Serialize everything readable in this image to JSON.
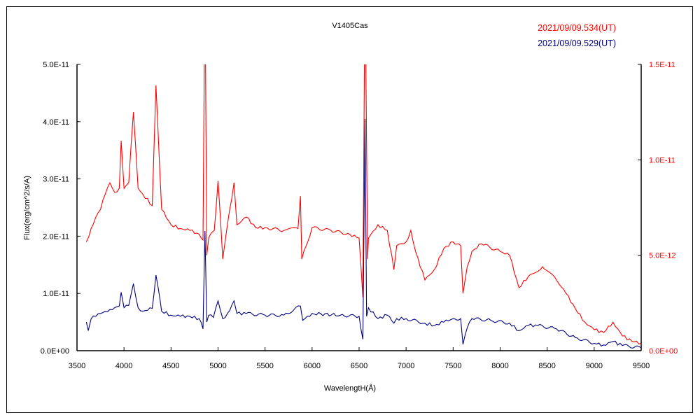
{
  "chart_data": {
    "type": "line",
    "title": "V1405Cas",
    "xlabel": "WavelengtH(Å)",
    "ylabel": "Flux(erg/cm^2/s/A)",
    "xlim": [
      3500,
      9500
    ],
    "xticks": [
      "3500",
      "4000",
      "4500",
      "5000",
      "5500",
      "6000",
      "6500",
      "7000",
      "7500",
      "8000",
      "8500",
      "9000",
      "9500"
    ],
    "ylim_left": [
      0,
      5e-11
    ],
    "yticks_left": [
      "0.0E+00",
      "1.0E-11",
      "2.0E-11",
      "3.0E-11",
      "4.0E-11",
      "5.0E-11"
    ],
    "ylim_right": [
      0,
      1.5e-11
    ],
    "yticks_right": [
      "0.0E+00",
      "5.0E-12",
      "1.0E-11",
      "1.5E-11"
    ],
    "grid": false,
    "legend_placement": "top-right",
    "series": [
      {
        "name": "2021/09/09.534(UT)",
        "color": "#ff0000",
        "axis": "right",
        "x": [
          3600,
          3650,
          3700,
          3750,
          3800,
          3850,
          3900,
          3950,
          3970,
          4000,
          4050,
          4100,
          4150,
          4200,
          4300,
          4340,
          4400,
          4500,
          4600,
          4700,
          4800,
          4840,
          4861,
          4880,
          4900,
          4960,
          5000,
          5050,
          5100,
          5170,
          5200,
          5300,
          5400,
          5500,
          5700,
          5850,
          5876,
          5890,
          6000,
          6200,
          6400,
          6500,
          6540,
          6563,
          6590,
          6600,
          6700,
          6800,
          6870,
          6900,
          7000,
          7050,
          7100,
          7200,
          7300,
          7400,
          7500,
          7580,
          7605,
          7650,
          7700,
          7800,
          8000,
          8100,
          8200,
          8300,
          8450,
          8600,
          8700,
          8800,
          8900,
          9000,
          9100,
          9200,
          9300,
          9400,
          9500
        ],
        "y": [
          5.7e-12,
          6.4e-12,
          7e-12,
          7.4e-12,
          8.2e-12,
          8.8e-12,
          8.3e-12,
          8.5e-12,
          1.1e-11,
          8.5e-12,
          8.8e-12,
          1.25e-11,
          8.5e-12,
          8.2e-12,
          7.6e-12,
          1.39e-11,
          7.4e-12,
          6.6e-12,
          6.4e-12,
          6.3e-12,
          6.1e-12,
          5.8e-12,
          2e-11,
          5e-12,
          5.9e-12,
          6.3e-12,
          8.9e-12,
          4.8e-12,
          6.6e-12,
          8.8e-12,
          6.6e-12,
          7e-12,
          6.45e-12,
          6.45e-12,
          6.3e-12,
          6.4e-12,
          8.1e-12,
          4.8e-12,
          6.45e-12,
          6.3e-12,
          6.1e-12,
          5.9e-12,
          2.8e-12,
          2e-11,
          4.8e-12,
          5.9e-12,
          6.6e-12,
          6.3e-12,
          4.25e-12,
          5.5e-12,
          5.7e-12,
          6.3e-12,
          5.2e-12,
          3.7e-12,
          4.25e-12,
          5.35e-12,
          5.7e-12,
          5.5e-12,
          3e-12,
          4.4e-12,
          5.2e-12,
          5.6e-12,
          5.2e-12,
          5e-12,
          3.3e-12,
          3.9e-12,
          4.4e-12,
          3.7e-12,
          3e-12,
          2.2e-12,
          1.5e-12,
          1.1e-12,
          9.5e-13,
          1.5e-12,
          7.7e-13,
          5e-13,
          4e-13
        ]
      },
      {
        "name": "2021/09/09.529(UT)",
        "color": "#000080",
        "axis": "left",
        "x": [
          3600,
          3620,
          3650,
          3700,
          3750,
          3800,
          3850,
          3900,
          3950,
          3970,
          4000,
          4050,
          4100,
          4150,
          4200,
          4300,
          4340,
          4400,
          4500,
          4600,
          4700,
          4800,
          4840,
          4861,
          4880,
          4900,
          4950,
          5000,
          5050,
          5100,
          5170,
          5200,
          5300,
          5500,
          5700,
          5876,
          5900,
          6000,
          6300,
          6500,
          6540,
          6563,
          6580,
          6600,
          6700,
          6800,
          6870,
          6900,
          7000,
          7200,
          7300,
          7400,
          7500,
          7580,
          7605,
          7650,
          7700,
          7900,
          8100,
          8200,
          8300,
          8400,
          8600,
          8800,
          9000,
          9100,
          9200,
          9300,
          9500
        ],
        "y": [
          5e-12,
          3.5e-12,
          5.6e-12,
          6e-12,
          6.5e-12,
          6.9e-12,
          7.2e-12,
          7.5e-12,
          7.8e-12,
          1.02e-11,
          7.5e-12,
          7.9e-12,
          1.17e-11,
          7.5e-12,
          6.9e-12,
          7.4e-12,
          1.32e-11,
          6.9e-12,
          6.2e-12,
          6e-12,
          6e-12,
          5.6e-12,
          3.8e-12,
          2.09e-11,
          5e-12,
          6.2e-12,
          5.8e-12,
          8.7e-12,
          5.6e-12,
          6.5e-12,
          8.7e-12,
          6.5e-12,
          6.5e-12,
          6.2e-12,
          6.2e-12,
          7.8e-12,
          5.3e-12,
          6.5e-12,
          6.2e-12,
          6e-12,
          2e-12,
          4.05e-11,
          6e-12,
          7.5e-12,
          5.6e-12,
          6.2e-12,
          4.8e-12,
          5.6e-12,
          5.6e-12,
          4.8e-12,
          4.4e-12,
          5e-12,
          5.6e-12,
          5.6e-12,
          1.1e-12,
          4e-12,
          5.6e-12,
          5.3e-12,
          4.8e-12,
          3.5e-12,
          4.4e-12,
          4.4e-12,
          3.8e-12,
          2.3e-12,
          1.3e-12,
          1e-12,
          1.6e-12,
          9e-13,
          5e-13
        ]
      }
    ]
  }
}
